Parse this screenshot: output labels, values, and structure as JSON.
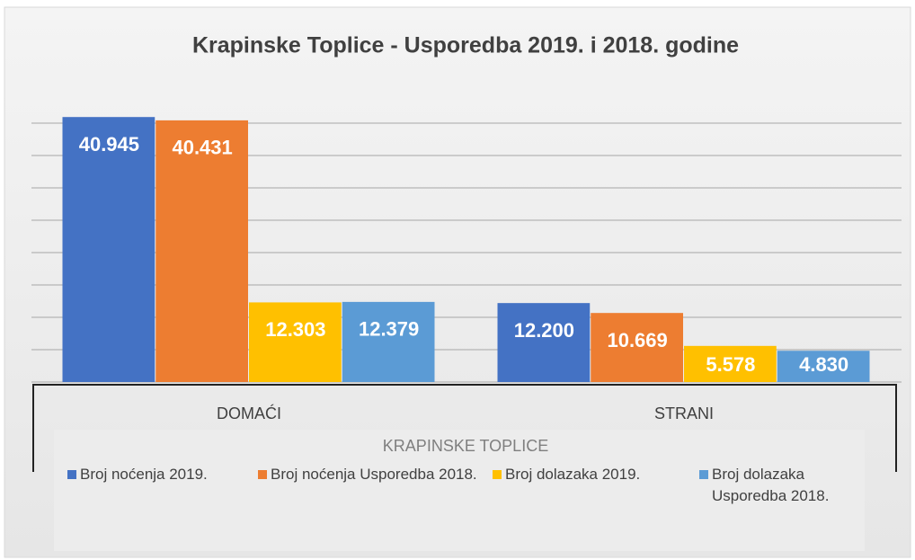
{
  "chart_data": {
    "type": "bar",
    "title": "Krapinske Toplice - Usporedba 2019. i 2018. godine",
    "categories": [
      "DOMAĆI",
      "STRANI"
    ],
    "legend_title": "KRAPINSKE TOPLICE",
    "series": [
      {
        "name": "Broj noćenja 2019.",
        "color": "#4472c4",
        "values": [
          40945,
          12200
        ],
        "value_labels": [
          "40.945",
          "12.200"
        ]
      },
      {
        "name": "Broj noćenja Usporedba 2018.",
        "color": "#ed7d31",
        "values": [
          40431,
          10669
        ],
        "value_labels": [
          "40.431",
          "10.669"
        ]
      },
      {
        "name": "Broj dolazaka 2019.",
        "color": "#ffc000",
        "values": [
          12303,
          5578
        ],
        "value_labels": [
          "12.303",
          "5.578"
        ]
      },
      {
        "name": "Broj dolazaka Usporedba 2018.",
        "color": "#5b9bd5",
        "values": [
          12379,
          4830
        ],
        "value_labels": [
          "12.379",
          "4.830"
        ]
      }
    ],
    "ylim": [
      0,
      45000
    ],
    "yticks": [
      0,
      5000,
      10000,
      15000,
      20000,
      25000,
      30000,
      35000,
      40000
    ],
    "grid": true
  }
}
